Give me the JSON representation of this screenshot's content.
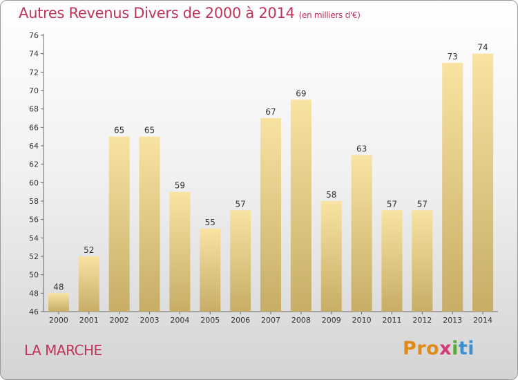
{
  "header": {
    "title": "Autres Revenus Divers de 2000 à 2014",
    "unit": "(en milliers d'€)"
  },
  "footer": {
    "commune": "LA MARCHE",
    "logo_parts": [
      "Pro",
      "x",
      "i",
      "ti"
    ]
  },
  "colors": {
    "title": "#c0335a",
    "bar_light": "#f8e3a2",
    "bar_dark": "#c7ad66"
  },
  "chart_data": {
    "type": "bar",
    "title": "Autres Revenus Divers de 2000 à 2014",
    "subtitle": "(en milliers d'€)",
    "categories": [
      "2000",
      "2001",
      "2002",
      "2003",
      "2004",
      "2005",
      "2006",
      "2007",
      "2008",
      "2009",
      "2010",
      "2011",
      "2012",
      "2013",
      "2014"
    ],
    "values": [
      48,
      52,
      65,
      65,
      59,
      55,
      57,
      67,
      69,
      58,
      63,
      57,
      57,
      73,
      74
    ],
    "ylim": [
      46,
      76
    ],
    "yticks": [
      46,
      48,
      50,
      52,
      54,
      56,
      58,
      60,
      62,
      64,
      66,
      68,
      70,
      72,
      74,
      76
    ],
    "grid": false,
    "data_labels": true
  }
}
